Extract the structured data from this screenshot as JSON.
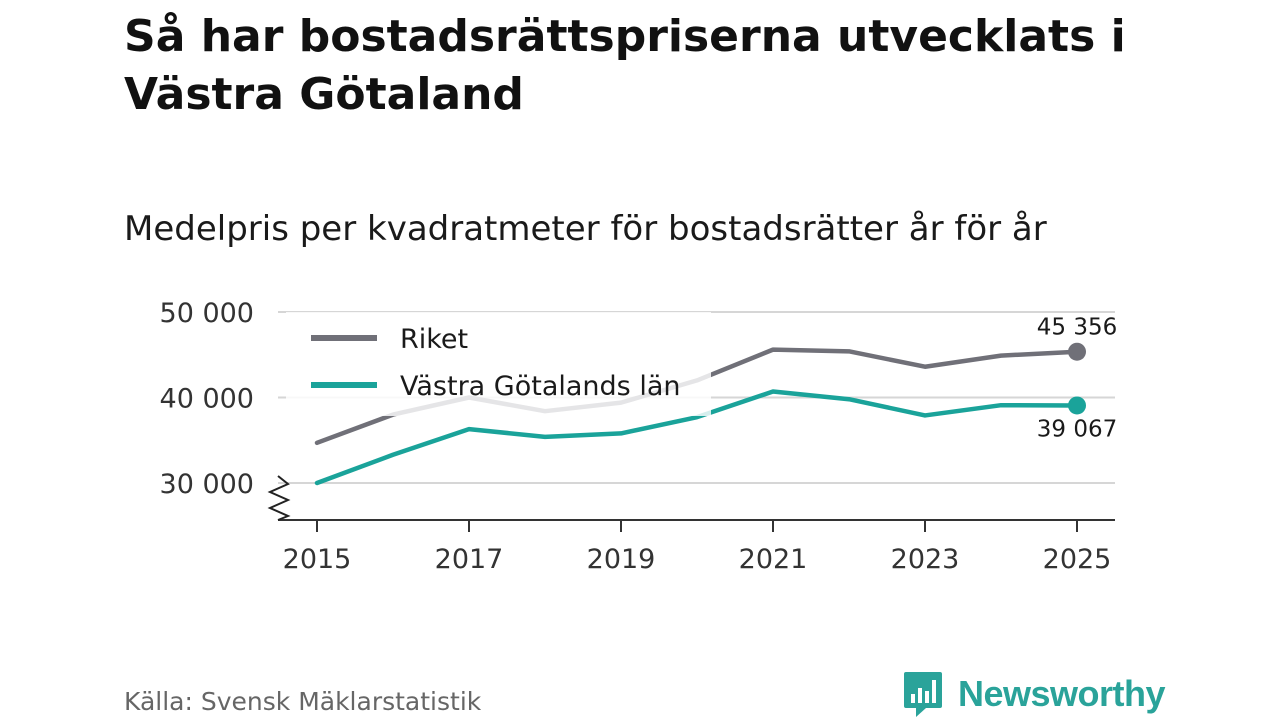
{
  "title": "Så har bostadsrättspriserna utvecklats i Västra Götaland",
  "subtitle": "Medelpris per kvadratmeter för bostadsrätter år för år",
  "source": "Källa: Svensk Mäklarstatistik",
  "brand": "Newsworthy",
  "colors": {
    "riket": "#707078",
    "vastra_gotaland": "#1aa39a",
    "grid": "#d6d6d6",
    "axis": "#333333",
    "brand": "#2aa39a"
  },
  "chart_data": {
    "type": "line",
    "x": [
      2015,
      2016,
      2017,
      2018,
      2019,
      2020,
      2021,
      2022,
      2023,
      2024,
      2025
    ],
    "x_ticks": [
      "2015",
      "2017",
      "2019",
      "2021",
      "2023",
      "2025"
    ],
    "y_ticks": [
      "30 000",
      "40 000",
      "50 000"
    ],
    "y_tick_values": [
      30000,
      40000,
      50000
    ],
    "ylim": [
      30000,
      50000
    ],
    "axis_break": true,
    "legend_position": "top-left",
    "series": [
      {
        "name": "Riket",
        "values": [
          34700,
          38000,
          40000,
          38400,
          39400,
          42000,
          45600,
          45400,
          43600,
          44900,
          45356
        ],
        "end_label": "45 356"
      },
      {
        "name": "Västra Götalands län",
        "values": [
          30000,
          33300,
          36300,
          35400,
          35800,
          37700,
          40700,
          39800,
          37900,
          39100,
          39067
        ],
        "end_label": "39 067"
      }
    ]
  }
}
